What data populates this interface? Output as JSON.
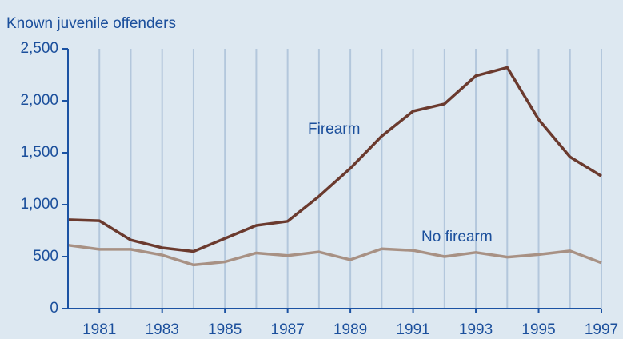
{
  "chart_data": {
    "type": "line",
    "title": "Known juvenile offenders",
    "x": [
      1980,
      1981,
      1982,
      1983,
      1984,
      1985,
      1986,
      1987,
      1988,
      1989,
      1990,
      1991,
      1992,
      1993,
      1994,
      1995,
      1996,
      1997
    ],
    "series": [
      {
        "name": "Firearm",
        "color": "#6b3a2e",
        "values": [
          855,
          845,
          660,
          585,
          550,
          675,
          800,
          840,
          1080,
          1350,
          1660,
          1900,
          1970,
          2240,
          2320,
          1820,
          1460,
          1275
        ]
      },
      {
        "name": "No firearm",
        "color": "#a89184",
        "values": [
          610,
          570,
          570,
          515,
          420,
          450,
          535,
          510,
          545,
          470,
          575,
          560,
          500,
          540,
          495,
          520,
          555,
          440
        ]
      }
    ],
    "xlim": [
      1980,
      1997
    ],
    "xticks": [
      1981,
      1983,
      1985,
      1987,
      1989,
      1991,
      1993,
      1995,
      1997
    ],
    "minor_xticks": [
      1980,
      1982,
      1984,
      1986,
      1988,
      1990,
      1992,
      1994,
      1996
    ],
    "ylim": [
      0,
      2500
    ],
    "yticks": [
      0,
      {
        "value": 500,
        "label": "500"
      },
      {
        "value": 1000,
        "label": "1,000"
      },
      {
        "value": 1500,
        "label": "1,500"
      },
      {
        "value": 2000,
        "label": "2,000"
      },
      {
        "value": 2500,
        "label": "2,500"
      }
    ],
    "grid": true
  }
}
